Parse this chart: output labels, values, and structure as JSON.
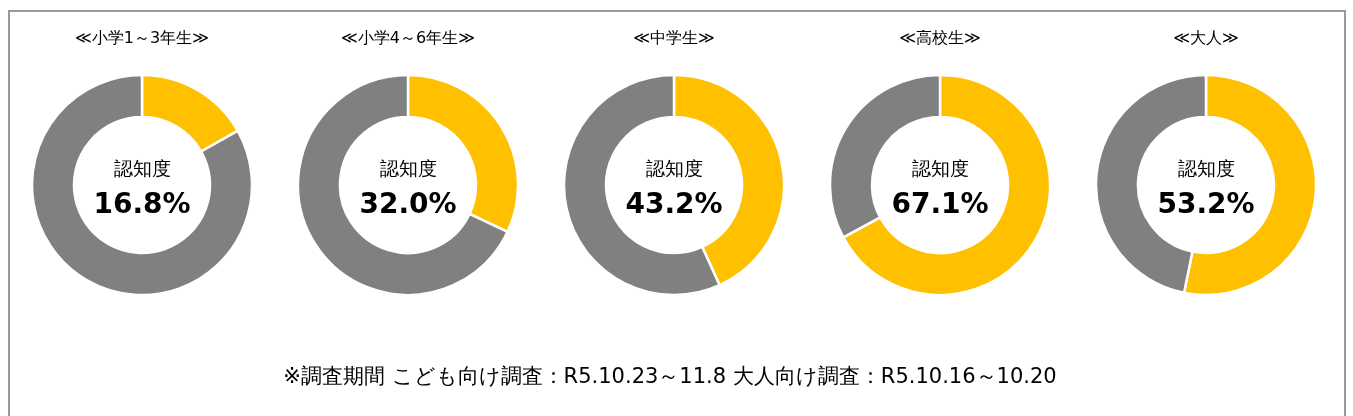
{
  "chart_data": [
    {
      "type": "donut",
      "title": "≪小学1～3年生≫",
      "categories": [
        null,
        null
      ],
      "values": [
        16.8,
        83.2
      ],
      "colors": [
        "#ffc000",
        "#808080"
      ],
      "annotations": [
        "認知度",
        "16.8%"
      ]
    },
    {
      "type": "donut",
      "title": "≪小学4～6年生≫",
      "categories": [
        null,
        null
      ],
      "values": [
        32.0,
        68.0
      ],
      "colors": [
        "#ffc000",
        "#808080"
      ],
      "annotations": [
        "認知度",
        "32.0%"
      ]
    },
    {
      "type": "donut",
      "title": "≪中学生≫",
      "categories": [
        null,
        null
      ],
      "values": [
        43.2,
        56.8
      ],
      "colors": [
        "#ffc000",
        "#808080"
      ],
      "annotations": [
        "認知度",
        "43.2%"
      ]
    },
    {
      "type": "donut",
      "title": "≪高校生≫",
      "categories": [
        null,
        null
      ],
      "values": [
        67.1,
        32.9
      ],
      "colors": [
        "#ffc000",
        "#808080"
      ],
      "annotations": [
        "認知度",
        "67.1%"
      ]
    },
    {
      "type": "donut",
      "title": "≪大人≫",
      "categories": [
        null,
        null
      ],
      "values": [
        53.2,
        46.8
      ],
      "colors": [
        "#ffc000",
        "#808080"
      ],
      "annotations": [
        "認知度",
        "53.2%"
      ]
    },
    {
      "type": "other",
      "annotations": [
        "※調査期間  こども向け調査：R5.10.23～11.8    大人向け調査：R5.10.16～10.20"
      ]
    }
  ]
}
